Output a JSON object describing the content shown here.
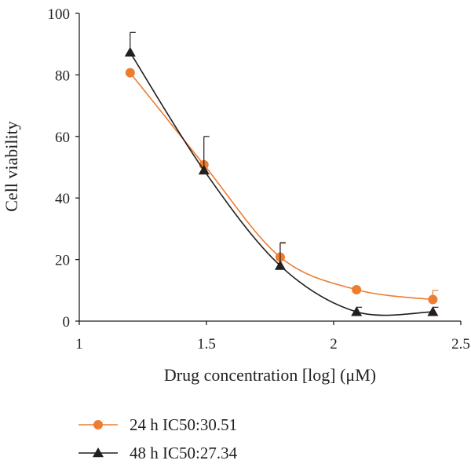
{
  "chart_data": {
    "type": "scatter",
    "title": "",
    "xlabel": "Drug concentration [log] (μM)",
    "ylabel": "Cell viability",
    "xlim": [
      1,
      2.5
    ],
    "ylim": [
      0,
      100
    ],
    "xticks": [
      "1",
      "1.5",
      "2",
      "2.5"
    ],
    "yticks": [
      "0",
      "20",
      "40",
      "60",
      "80",
      "100"
    ],
    "grid": false,
    "legend_position": "bottom",
    "series": [
      {
        "name": "24 h IC50:30.51",
        "color": "#ed7d31",
        "marker": "circle",
        "x": [
          1.2,
          1.49,
          1.79,
          2.09,
          2.39
        ],
        "y": [
          80.7,
          50.8,
          20.8,
          10.2,
          7.0
        ],
        "error": [
          0,
          0,
          4.5,
          0,
          3.0
        ]
      },
      {
        "name": "48 h IC50:27.34",
        "color": "#231f20",
        "marker": "triangle",
        "x": [
          1.2,
          1.49,
          1.79,
          2.09,
          2.39
        ],
        "y": [
          87.3,
          49.0,
          18.0,
          3.0,
          3.0
        ],
        "error": [
          6.5,
          11.0,
          7.5,
          1.5,
          1.5
        ]
      }
    ]
  }
}
